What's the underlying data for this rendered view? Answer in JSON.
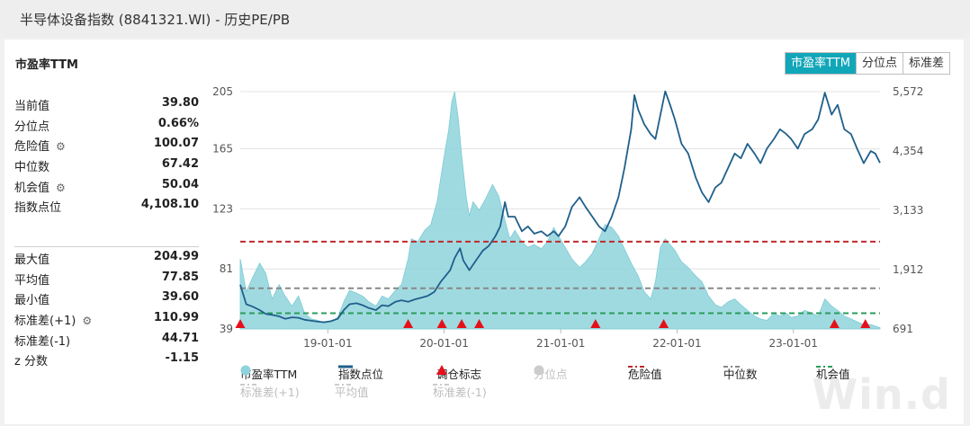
{
  "window": {
    "title": "半导体设备指数 (8841321.WI) - 历史PE/PB"
  },
  "section": {
    "title": "市盈率TTM"
  },
  "tabs": [
    {
      "label": "市盈率TTM",
      "active": true
    },
    {
      "label": "分位点",
      "active": false
    },
    {
      "label": "标准差",
      "active": false
    }
  ],
  "stats_top": [
    {
      "label": "当前值",
      "value": "39.80",
      "gear": false
    },
    {
      "label": "分位点",
      "value": "0.66%",
      "gear": false
    },
    {
      "label": "危险值",
      "value": "100.07",
      "gear": true
    },
    {
      "label": "中位数",
      "value": "67.42",
      "gear": false
    },
    {
      "label": "机会值",
      "value": "50.04",
      "gear": true
    },
    {
      "label": "指数点位",
      "value": "4,108.10",
      "gear": false
    }
  ],
  "stats_bottom": [
    {
      "label": "最大值",
      "value": "204.99",
      "gear": false
    },
    {
      "label": "平均值",
      "value": "77.85",
      "gear": false
    },
    {
      "label": "最小值",
      "value": "39.60",
      "gear": false
    },
    {
      "label": "标准差(+1)",
      "value": "110.99",
      "gear": true
    },
    {
      "label": "标准差(-1)",
      "value": "44.71",
      "gear": false
    },
    {
      "label": "z 分数",
      "value": "-1.15",
      "gear": false
    }
  ],
  "legend": {
    "row1": [
      {
        "key": "pe",
        "label": "市盈率TTM",
        "type": "dot",
        "color": "#8fd3dc",
        "dim": false
      },
      {
        "key": "index",
        "label": "指数点位",
        "type": "line",
        "color": "#1f5f8b",
        "dim": false
      },
      {
        "key": "mark",
        "label": "调仓标志",
        "type": "triangle",
        "color": "#e5101a",
        "dim": false
      },
      {
        "key": "pct",
        "label": "分位点",
        "type": "dot",
        "color": "#cccccc",
        "dim": true
      },
      {
        "key": "danger",
        "label": "危险值",
        "type": "dash",
        "color": "#c0282c",
        "dim": false
      },
      {
        "key": "median",
        "label": "中位数",
        "type": "dash",
        "color": "#888888",
        "dim": false
      },
      {
        "key": "chance",
        "label": "机会值",
        "type": "dash",
        "color": "#2a9d5c",
        "dim": false
      }
    ],
    "row2": [
      {
        "key": "sd_plus",
        "label": "标准差(+1)",
        "type": "dash",
        "color": "#cccccc",
        "dim": true
      },
      {
        "key": "avg",
        "label": "平均值",
        "type": "dash",
        "color": "#cccccc",
        "dim": true
      },
      {
        "key": "sd_minus",
        "label": "标准差(-1)",
        "type": "dash",
        "color": "#cccccc",
        "dim": true
      }
    ]
  },
  "watermark": "Win.d",
  "colors": {
    "accent": "#12a6b9",
    "area": "#8fd3dc",
    "index_line": "#1f5f8b",
    "danger": "#c0282c",
    "median": "#888888",
    "chance": "#2a9d5c",
    "marker": "#e5101a"
  },
  "chart_data": {
    "type": "area",
    "x_tick_labels": [
      "19-01-01",
      "20-01-01",
      "21-01-01",
      "22-01-01",
      "23-01-01"
    ],
    "y_left": {
      "ticks": [
        "205",
        "165",
        "123",
        "81",
        "39"
      ],
      "range": [
        39,
        205
      ]
    },
    "y_right": {
      "ticks": [
        "5,572",
        "4,354",
        "3,133",
        "1,912",
        "691"
      ],
      "range": [
        691,
        5572
      ]
    },
    "x_range": [
      "2018-04-01",
      "2023-09-30"
    ],
    "reference_lines": {
      "danger": 100.07,
      "median": 67.42,
      "chance": 50.04
    },
    "series": [
      {
        "name": "市盈率TTM",
        "axis": "left",
        "points": [
          [
            "2018-04-01",
            88
          ],
          [
            "2018-04-20",
            65
          ],
          [
            "2018-05-10",
            75
          ],
          [
            "2018-06-01",
            85
          ],
          [
            "2018-06-20",
            78
          ],
          [
            "2018-07-10",
            60
          ],
          [
            "2018-08-01",
            70
          ],
          [
            "2018-08-20",
            62
          ],
          [
            "2018-09-10",
            55
          ],
          [
            "2018-10-01",
            62
          ],
          [
            "2018-10-20",
            50
          ],
          [
            "2018-11-10",
            46
          ],
          [
            "2018-12-01",
            45
          ],
          [
            "2018-12-20",
            43
          ],
          [
            "2019-01-10",
            44
          ],
          [
            "2019-02-01",
            47
          ],
          [
            "2019-02-20",
            58
          ],
          [
            "2019-03-10",
            66
          ],
          [
            "2019-04-01",
            64
          ],
          [
            "2019-04-20",
            62
          ],
          [
            "2019-05-10",
            58
          ],
          [
            "2019-06-01",
            55
          ],
          [
            "2019-06-20",
            62
          ],
          [
            "2019-07-10",
            60
          ],
          [
            "2019-08-01",
            66
          ],
          [
            "2019-08-20",
            70
          ],
          [
            "2019-09-10",
            88
          ],
          [
            "2019-09-20",
            102
          ],
          [
            "2019-10-10",
            100
          ],
          [
            "2019-11-01",
            108
          ],
          [
            "2019-11-20",
            112
          ],
          [
            "2019-12-10",
            128
          ],
          [
            "2019-12-25",
            150
          ],
          [
            "2020-01-05",
            165
          ],
          [
            "2020-01-15",
            178
          ],
          [
            "2020-01-25",
            198
          ],
          [
            "2020-02-03",
            205
          ],
          [
            "2020-02-15",
            185
          ],
          [
            "2020-02-25",
            160
          ],
          [
            "2020-03-10",
            132
          ],
          [
            "2020-03-20",
            118
          ],
          [
            "2020-04-01",
            128
          ],
          [
            "2020-04-20",
            122
          ],
          [
            "2020-05-10",
            130
          ],
          [
            "2020-06-01",
            140
          ],
          [
            "2020-06-20",
            132
          ],
          [
            "2020-07-10",
            115
          ],
          [
            "2020-07-25",
            102
          ],
          [
            "2020-08-10",
            108
          ],
          [
            "2020-09-01",
            100
          ],
          [
            "2020-09-20",
            96
          ],
          [
            "2020-10-10",
            98
          ],
          [
            "2020-11-01",
            95
          ],
          [
            "2020-11-20",
            100
          ],
          [
            "2020-12-10",
            110
          ],
          [
            "2020-12-25",
            104
          ],
          [
            "2021-01-15",
            96
          ],
          [
            "2021-02-05",
            88
          ],
          [
            "2021-03-01",
            82
          ],
          [
            "2021-03-20",
            86
          ],
          [
            "2021-04-10",
            92
          ],
          [
            "2021-05-01",
            102
          ],
          [
            "2021-05-20",
            112
          ],
          [
            "2021-06-10",
            110
          ],
          [
            "2021-07-01",
            104
          ],
          [
            "2021-07-20",
            95
          ],
          [
            "2021-08-10",
            85
          ],
          [
            "2021-09-01",
            76
          ],
          [
            "2021-09-20",
            65
          ],
          [
            "2021-10-10",
            60
          ],
          [
            "2021-10-25",
            72
          ],
          [
            "2021-11-10",
            96
          ],
          [
            "2021-11-25",
            102
          ],
          [
            "2021-12-10",
            98
          ],
          [
            "2021-12-25",
            94
          ],
          [
            "2022-01-15",
            86
          ],
          [
            "2022-02-05",
            82
          ],
          [
            "2022-03-01",
            76
          ],
          [
            "2022-03-20",
            72
          ],
          [
            "2022-04-10",
            62
          ],
          [
            "2022-05-01",
            56
          ],
          [
            "2022-05-20",
            54
          ],
          [
            "2022-06-10",
            58
          ],
          [
            "2022-07-01",
            60
          ],
          [
            "2022-07-20",
            56
          ],
          [
            "2022-08-10",
            52
          ],
          [
            "2022-09-01",
            48
          ],
          [
            "2022-09-20",
            46
          ],
          [
            "2022-10-10",
            45
          ],
          [
            "2022-11-01",
            50
          ],
          [
            "2022-11-20",
            48
          ],
          [
            "2022-12-10",
            50
          ],
          [
            "2022-12-25",
            47
          ],
          [
            "2023-01-15",
            48
          ],
          [
            "2023-02-05",
            52
          ],
          [
            "2023-03-01",
            50
          ],
          [
            "2023-03-20",
            48
          ],
          [
            "2023-04-10",
            60
          ],
          [
            "2023-05-01",
            55
          ],
          [
            "2023-05-20",
            52
          ],
          [
            "2023-06-10",
            48
          ],
          [
            "2023-07-01",
            46
          ],
          [
            "2023-07-20",
            44
          ],
          [
            "2023-08-10",
            42
          ],
          [
            "2023-09-01",
            42
          ],
          [
            "2023-09-15",
            41
          ],
          [
            "2023-09-30",
            39.8
          ]
        ]
      },
      {
        "name": "指数点位",
        "axis": "right",
        "points": [
          [
            "2018-04-01",
            1600
          ],
          [
            "2018-04-20",
            1200
          ],
          [
            "2018-05-10",
            1150
          ],
          [
            "2018-06-01",
            1080
          ],
          [
            "2018-06-20",
            1000
          ],
          [
            "2018-07-10",
            980
          ],
          [
            "2018-08-01",
            950
          ],
          [
            "2018-08-20",
            900
          ],
          [
            "2018-09-10",
            930
          ],
          [
            "2018-10-01",
            920
          ],
          [
            "2018-10-20",
            880
          ],
          [
            "2018-11-10",
            860
          ],
          [
            "2018-12-01",
            840
          ],
          [
            "2018-12-20",
            830
          ],
          [
            "2019-01-10",
            850
          ],
          [
            "2019-02-01",
            900
          ],
          [
            "2019-02-20",
            1080
          ],
          [
            "2019-03-10",
            1200
          ],
          [
            "2019-04-01",
            1220
          ],
          [
            "2019-04-20",
            1180
          ],
          [
            "2019-05-10",
            1120
          ],
          [
            "2019-06-01",
            1080
          ],
          [
            "2019-06-20",
            1180
          ],
          [
            "2019-07-10",
            1160
          ],
          [
            "2019-08-01",
            1250
          ],
          [
            "2019-08-20",
            1280
          ],
          [
            "2019-09-10",
            1250
          ],
          [
            "2019-10-01",
            1300
          ],
          [
            "2019-10-20",
            1330
          ],
          [
            "2019-11-10",
            1370
          ],
          [
            "2019-12-01",
            1450
          ],
          [
            "2019-12-20",
            1650
          ],
          [
            "2020-01-10",
            1820
          ],
          [
            "2020-01-20",
            1900
          ],
          [
            "2020-02-03",
            2150
          ],
          [
            "2020-02-20",
            2350
          ],
          [
            "2020-03-01",
            2100
          ],
          [
            "2020-03-20",
            1900
          ],
          [
            "2020-04-10",
            2100
          ],
          [
            "2020-05-01",
            2300
          ],
          [
            "2020-05-20",
            2400
          ],
          [
            "2020-06-10",
            2600
          ],
          [
            "2020-06-25",
            2800
          ],
          [
            "2020-07-10",
            3300
          ],
          [
            "2020-07-20",
            3000
          ],
          [
            "2020-08-10",
            3000
          ],
          [
            "2020-09-01",
            2700
          ],
          [
            "2020-09-20",
            2800
          ],
          [
            "2020-10-10",
            2650
          ],
          [
            "2020-11-01",
            2700
          ],
          [
            "2020-11-20",
            2600
          ],
          [
            "2020-12-10",
            2700
          ],
          [
            "2020-12-25",
            2600
          ],
          [
            "2021-01-15",
            2800
          ],
          [
            "2021-02-05",
            3200
          ],
          [
            "2021-03-01",
            3400
          ],
          [
            "2021-03-20",
            3200
          ],
          [
            "2021-04-10",
            3000
          ],
          [
            "2021-05-01",
            2800
          ],
          [
            "2021-05-20",
            2700
          ],
          [
            "2021-06-10",
            3000
          ],
          [
            "2021-07-01",
            3400
          ],
          [
            "2021-07-20",
            4000
          ],
          [
            "2021-08-10",
            4800
          ],
          [
            "2021-08-20",
            5500
          ],
          [
            "2021-09-01",
            5200
          ],
          [
            "2021-09-20",
            4900
          ],
          [
            "2021-10-10",
            4700
          ],
          [
            "2021-10-25",
            4600
          ],
          [
            "2021-11-10",
            5100
          ],
          [
            "2021-11-25",
            5580
          ],
          [
            "2021-12-10",
            5300
          ],
          [
            "2021-12-25",
            5000
          ],
          [
            "2022-01-15",
            4500
          ],
          [
            "2022-02-05",
            4300
          ],
          [
            "2022-03-01",
            3800
          ],
          [
            "2022-03-20",
            3500
          ],
          [
            "2022-04-10",
            3300
          ],
          [
            "2022-05-01",
            3600
          ],
          [
            "2022-05-20",
            3700
          ],
          [
            "2022-06-10",
            4000
          ],
          [
            "2022-07-01",
            4300
          ],
          [
            "2022-07-20",
            4200
          ],
          [
            "2022-08-10",
            4500
          ],
          [
            "2022-09-01",
            4300
          ],
          [
            "2022-09-20",
            4100
          ],
          [
            "2022-10-10",
            4400
          ],
          [
            "2022-11-01",
            4600
          ],
          [
            "2022-11-20",
            4800
          ],
          [
            "2022-12-10",
            4700
          ],
          [
            "2022-12-25",
            4600
          ],
          [
            "2023-01-15",
            4400
          ],
          [
            "2023-02-05",
            4700
          ],
          [
            "2023-03-01",
            4800
          ],
          [
            "2023-03-20",
            5000
          ],
          [
            "2023-04-10",
            5550
          ],
          [
            "2023-05-01",
            5100
          ],
          [
            "2023-05-20",
            5300
          ],
          [
            "2023-06-10",
            4800
          ],
          [
            "2023-07-01",
            4700
          ],
          [
            "2023-07-20",
            4400
          ],
          [
            "2023-08-10",
            4100
          ],
          [
            "2023-09-01",
            4350
          ],
          [
            "2023-09-15",
            4300
          ],
          [
            "2023-09-30",
            4108.1
          ]
        ]
      }
    ],
    "rebalance_markers": [
      "2018-04-01",
      "2019-09-10",
      "2019-12-25",
      "2020-02-25",
      "2020-04-20",
      "2021-04-20",
      "2021-11-20",
      "2023-05-10",
      "2023-08-15"
    ]
  }
}
